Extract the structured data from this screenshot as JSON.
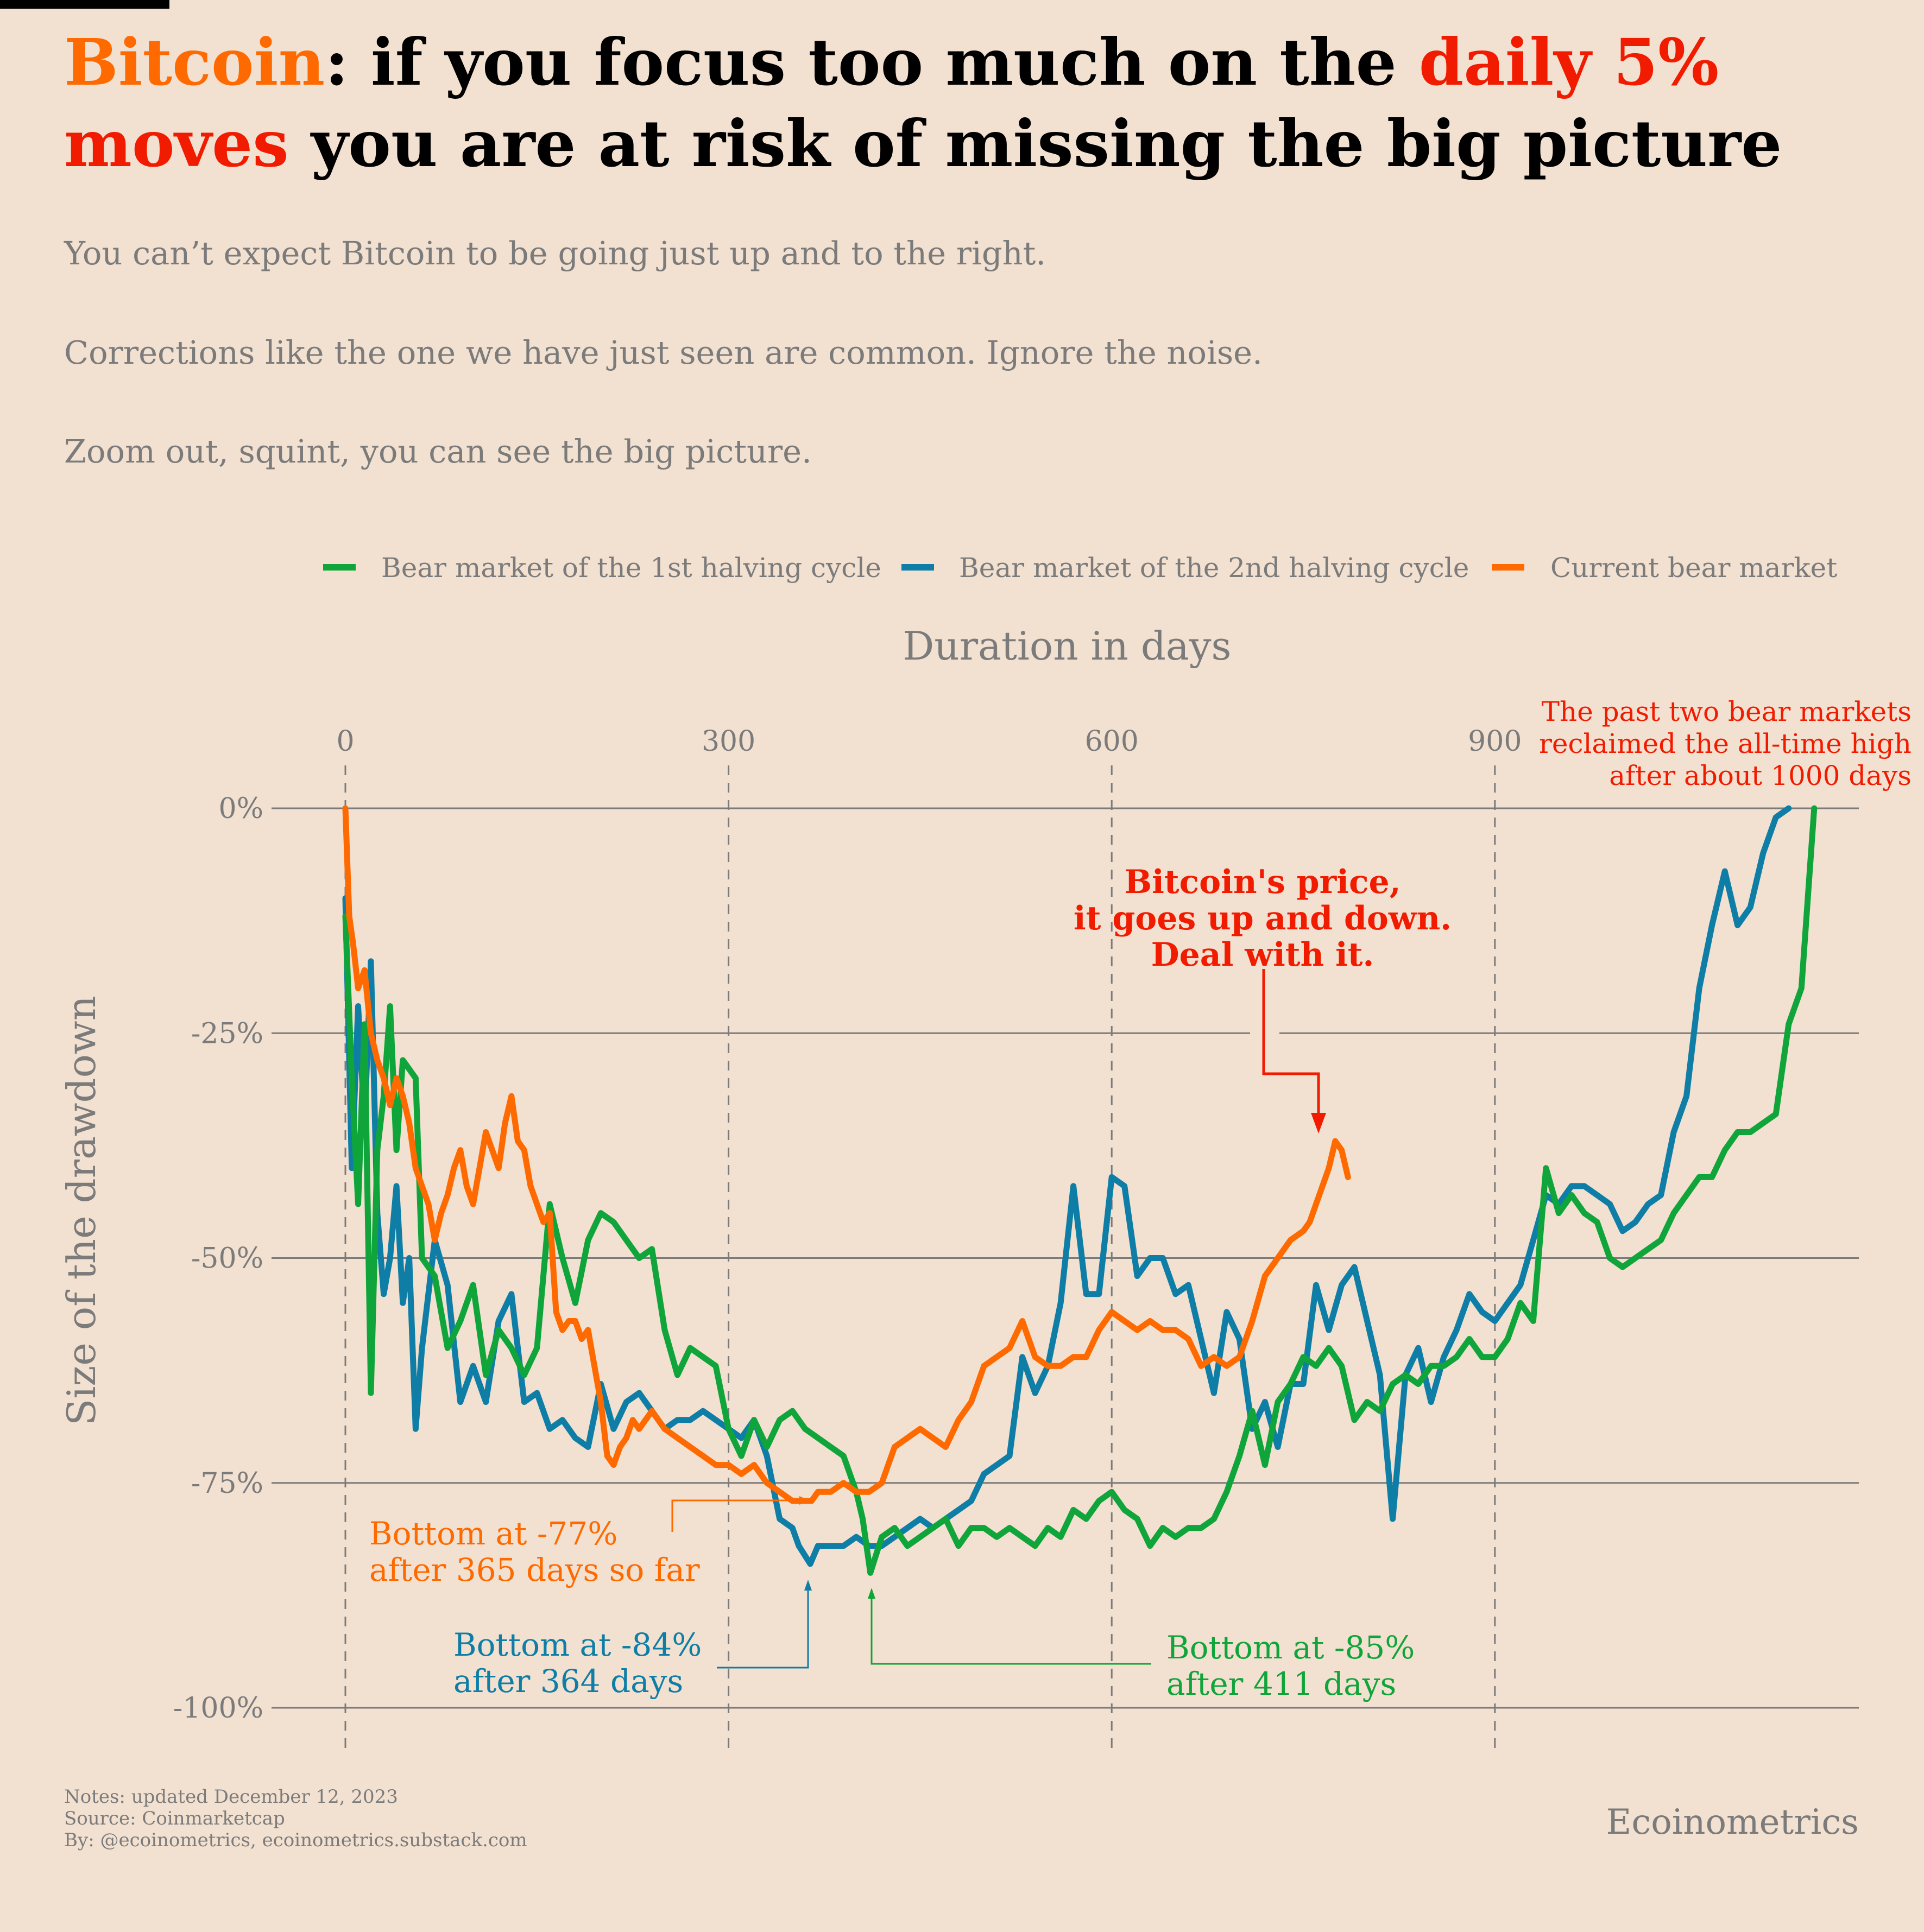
{
  "title": {
    "part1": "Bitcoin",
    "part2": ": if you focus too much on the ",
    "part3": "daily 5% moves",
    "part4": " you are at risk of missing the big picture"
  },
  "subtitle": [
    "You can’t expect Bitcoin to be going just up and to the right.",
    "Corrections like the one we have just seen are common. Ignore the noise.",
    "Zoom out, squint, you can see the big picture."
  ],
  "notes": {
    "line1": "Notes: updated December 12, 2023",
    "line2": "Source: Coinmarketcap",
    "line3": "By: @ecoinometrics, ecoinometrics.substack.com"
  },
  "brand": "Ecoinometrics",
  "colors": {
    "background": "#f2e0d0",
    "green": "#10a53a",
    "blue": "#0f7ea6",
    "orange": "#ff6a00",
    "red": "#f11b00",
    "grid": "#7b7b7b"
  },
  "annotations": {
    "main": [
      "Bitcoin's price,",
      "it goes up and down.",
      "Deal with it."
    ],
    "top_right": [
      "The past two bear markets",
      "reclaimed the all-time high",
      "after about 1000 days"
    ],
    "orange_bottom": [
      "Bottom at -77%",
      "after 365 days so far"
    ],
    "blue_bottom": [
      "Bottom at -84%",
      "after 364 days"
    ],
    "green_bottom": [
      "Bottom at -85%",
      "after 411 days"
    ]
  },
  "chart_data": {
    "type": "line",
    "xlabel": "Duration in days",
    "ylabel": "Size of the drawdown",
    "x_axis_position": "top",
    "xlim": [
      0,
      1185
    ],
    "ylim": [
      -100,
      0
    ],
    "xticks": [
      0,
      300,
      600,
      900
    ],
    "xtick_labels": [
      "0",
      "300",
      "600",
      "900"
    ],
    "yticks": [
      0,
      -25,
      -50,
      -75,
      -100
    ],
    "ytick_labels": [
      "0%",
      "-25%",
      "-50%",
      "-75%",
      "-100%"
    ],
    "legend_position": "top",
    "series": [
      {
        "name": "Bear market of the 1st halving cycle",
        "color": "#10a53a",
        "x": [
          0,
          5,
          10,
          15,
          20,
          25,
          30,
          35,
          40,
          45,
          50,
          55,
          60,
          70,
          80,
          90,
          100,
          110,
          120,
          130,
          140,
          150,
          160,
          170,
          180,
          190,
          200,
          210,
          220,
          230,
          240,
          250,
          260,
          270,
          280,
          290,
          300,
          310,
          320,
          330,
          340,
          350,
          360,
          370,
          380,
          390,
          400,
          405,
          411,
          420,
          430,
          440,
          450,
          460,
          470,
          480,
          490,
          500,
          510,
          520,
          530,
          540,
          550,
          560,
          570,
          580,
          590,
          600,
          610,
          620,
          630,
          640,
          650,
          660,
          670,
          680,
          690,
          700,
          710,
          720,
          730,
          740,
          750,
          760,
          770,
          780,
          790,
          800,
          810,
          820,
          830,
          840,
          850,
          860,
          870,
          880,
          890,
          900,
          910,
          920,
          930,
          940,
          950,
          960,
          970,
          980,
          990,
          1000,
          1010,
          1020,
          1030,
          1040,
          1050,
          1060,
          1070,
          1080,
          1090,
          1100,
          1110,
          1120,
          1130,
          1140,
          1145,
          1150
        ],
        "y": [
          -12,
          -30,
          -44,
          -24,
          -65,
          -38,
          -32,
          -22,
          -38,
          -28,
          -29,
          -30,
          -50,
          -52,
          -60,
          -57,
          -53,
          -63,
          -58,
          -60,
          -63,
          -60,
          -44,
          -50,
          -55,
          -48,
          -45,
          -46,
          -48,
          -50,
          -49,
          -58,
          -63,
          -60,
          -61,
          -62,
          -69,
          -72,
          -68,
          -71,
          -68,
          -67,
          -69,
          -70,
          -71,
          -72,
          -76,
          -79,
          -85,
          -81,
          -80,
          -82,
          -81,
          -80,
          -79,
          -82,
          -80,
          -80,
          -81,
          -80,
          -81,
          -82,
          -80,
          -81,
          -78,
          -79,
          -77,
          -76,
          -78,
          -79,
          -82,
          -80,
          -81,
          -80,
          -80,
          -79,
          -76,
          -72,
          -67,
          -73,
          -66,
          -64,
          -61,
          -62,
          -60,
          -62,
          -68,
          -66,
          -67,
          -64,
          -63,
          -64,
          -62,
          -62,
          -61,
          -59,
          -61,
          -61,
          -59,
          -55,
          -57,
          -40,
          -45,
          -43,
          -45,
          -46,
          -50,
          -51,
          -50,
          -49,
          -48,
          -45,
          -43,
          -41,
          -41,
          -38,
          -36,
          -36,
          -35,
          -34,
          -24,
          -20,
          -10,
          0
        ]
      },
      {
        "name": "Bear market of the 2nd halving cycle",
        "color": "#0f7ea6",
        "x": [
          0,
          5,
          10,
          15,
          20,
          25,
          30,
          35,
          40,
          45,
          50,
          55,
          60,
          70,
          80,
          90,
          100,
          110,
          120,
          130,
          140,
          150,
          160,
          170,
          180,
          190,
          200,
          210,
          220,
          230,
          240,
          250,
          260,
          270,
          280,
          290,
          300,
          310,
          320,
          330,
          340,
          350,
          355,
          364,
          370,
          380,
          390,
          400,
          410,
          420,
          430,
          440,
          450,
          460,
          470,
          480,
          490,
          500,
          510,
          520,
          530,
          540,
          550,
          560,
          570,
          580,
          590,
          600,
          610,
          620,
          630,
          640,
          650,
          660,
          670,
          680,
          690,
          700,
          710,
          720,
          730,
          740,
          750,
          760,
          770,
          780,
          790,
          800,
          810,
          820,
          830,
          840,
          850,
          860,
          870,
          880,
          890,
          900,
          910,
          920,
          930,
          940,
          950,
          960,
          970,
          980,
          990,
          1000,
          1010,
          1020,
          1030,
          1040,
          1050,
          1060,
          1070,
          1080,
          1090,
          1100,
          1110,
          1120,
          1130
        ],
        "y": [
          -10,
          -40,
          -22,
          -35,
          -17,
          -45,
          -54,
          -50,
          -42,
          -55,
          -50,
          -69,
          -60,
          -48,
          -53,
          -66,
          -62,
          -66,
          -57,
          -54,
          -66,
          -65,
          -69,
          -68,
          -70,
          -71,
          -64,
          -69,
          -66,
          -65,
          -67,
          -69,
          -68,
          -68,
          -67,
          -68,
          -69,
          -70,
          -68,
          -72,
          -79,
          -80,
          -82,
          -84,
          -82,
          -82,
          -82,
          -81,
          -82,
          -82,
          -81,
          -80,
          -79,
          -80,
          -79,
          -78,
          -77,
          -74,
          -73,
          -72,
          -61,
          -65,
          -62,
          -55,
          -42,
          -54,
          -54,
          -41,
          -42,
          -52,
          -50,
          -50,
          -54,
          -53,
          -59,
          -65,
          -56,
          -59,
          -69,
          -66,
          -71,
          -64,
          -64,
          -53,
          -58,
          -53,
          -51,
          -57,
          -63,
          -79,
          -63,
          -60,
          -66,
          -61,
          -58,
          -54,
          -56,
          -57,
          -55,
          -53,
          -48,
          -43,
          -44,
          -42,
          -42,
          -43,
          -44,
          -47,
          -46,
          -44,
          -43,
          -36,
          -32,
          -20,
          -13,
          -7,
          -13,
          -11,
          -5,
          -1,
          0
        ]
      },
      {
        "name": "Current bear market",
        "color": "#ff6a00",
        "x": [
          0,
          3,
          6,
          10,
          15,
          20,
          25,
          30,
          35,
          40,
          45,
          50,
          55,
          60,
          65,
          70,
          75,
          80,
          85,
          90,
          95,
          100,
          105,
          110,
          115,
          120,
          125,
          130,
          135,
          140,
          145,
          150,
          155,
          160,
          165,
          170,
          175,
          180,
          185,
          190,
          195,
          200,
          205,
          210,
          215,
          220,
          225,
          230,
          235,
          240,
          250,
          260,
          270,
          280,
          290,
          300,
          310,
          320,
          330,
          340,
          350,
          355,
          360,
          365,
          370,
          380,
          390,
          400,
          410,
          420,
          430,
          440,
          450,
          460,
          470,
          480,
          490,
          500,
          510,
          520,
          530,
          540,
          550,
          560,
          570,
          580,
          590,
          600,
          610,
          620,
          630,
          640,
          650,
          660,
          670,
          680,
          690,
          700,
          710,
          720,
          730,
          740,
          750,
          755,
          760,
          765,
          770,
          775,
          780,
          785
        ],
        "y": [
          0,
          -12,
          -15,
          -20,
          -18,
          -25,
          -28,
          -30,
          -33,
          -30,
          -32,
          -35,
          -40,
          -42,
          -44,
          -48,
          -45,
          -43,
          -40,
          -38,
          -42,
          -44,
          -40,
          -36,
          -38,
          -40,
          -35,
          -32,
          -37,
          -38,
          -42,
          -44,
          -46,
          -45,
          -56,
          -58,
          -57,
          -57,
          -59,
          -58,
          -62,
          -66,
          -72,
          -73,
          -71,
          -70,
          -68,
          -69,
          -68,
          -67,
          -69,
          -70,
          -71,
          -72,
          -73,
          -73,
          -74,
          -73,
          -75,
          -76,
          -77,
          -77,
          -77,
          -77,
          -76,
          -76,
          -75,
          -76,
          -76,
          -75,
          -71,
          -70,
          -69,
          -70,
          -71,
          -68,
          -66,
          -62,
          -61,
          -60,
          -57,
          -61,
          -62,
          -62,
          -61,
          -61,
          -58,
          -56,
          -57,
          -58,
          -57,
          -58,
          -58,
          -59,
          -62,
          -61,
          -62,
          -61,
          -57,
          -52,
          -50,
          -48,
          -47,
          -46,
          -44,
          -42,
          -40,
          -37,
          -38,
          -41
        ]
      }
    ]
  }
}
